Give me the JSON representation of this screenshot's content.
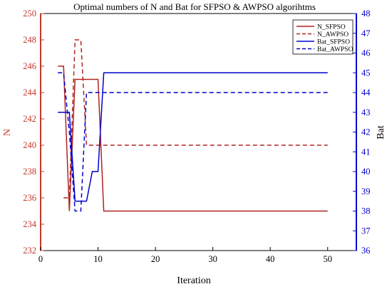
{
  "chart_data": {
    "type": "line",
    "title": "Optimal numbers of N and Bat for SFPSO & AWPSO algorihtms",
    "xlabel": "Iteration",
    "ylabel_left": "N",
    "ylabel_right": "Bat",
    "xlim": [
      0,
      55
    ],
    "ylim_left": [
      232,
      250
    ],
    "ylim_right": [
      36,
      48
    ],
    "x_ticks": [
      0,
      10,
      20,
      30,
      40,
      50
    ],
    "y_ticks_left": [
      232,
      234,
      236,
      238,
      240,
      242,
      244,
      246,
      248,
      250
    ],
    "y_ticks_right": [
      36,
      37,
      38,
      39,
      40,
      41,
      42,
      43,
      44,
      45,
      46,
      47,
      48
    ],
    "legend_position": "top-right",
    "series": [
      {
        "name": "N_SFPSO",
        "axis": "left",
        "color": "#b22222",
        "style": "solid",
        "points": [
          [
            3,
            246
          ],
          [
            4,
            246
          ],
          [
            5,
            235
          ],
          [
            6,
            245
          ],
          [
            10,
            245
          ],
          [
            11,
            235
          ],
          [
            50,
            235
          ]
        ]
      },
      {
        "name": "N_AWPSO",
        "axis": "left",
        "color": "#b22222",
        "style": "dashed",
        "points": [
          [
            4,
            236
          ],
          [
            5,
            236
          ],
          [
            6,
            248
          ],
          [
            7,
            248
          ],
          [
            8,
            240
          ],
          [
            50,
            240
          ]
        ]
      },
      {
        "name": "Bat_SFPSO",
        "axis": "right",
        "color": "#0000cd",
        "style": "solid",
        "points": [
          [
            3,
            43
          ],
          [
            5,
            43
          ],
          [
            6,
            38.5
          ],
          [
            8,
            38.5
          ],
          [
            9,
            40
          ],
          [
            10,
            40
          ],
          [
            11,
            45
          ],
          [
            50,
            45
          ]
        ]
      },
      {
        "name": "Bat_AWPSO",
        "axis": "right",
        "color": "#0000cd",
        "style": "dashed",
        "points": [
          [
            3,
            45
          ],
          [
            4,
            45
          ],
          [
            5,
            42
          ],
          [
            6,
            38
          ],
          [
            7,
            38
          ],
          [
            8,
            44
          ],
          [
            50,
            44
          ]
        ]
      }
    ]
  }
}
